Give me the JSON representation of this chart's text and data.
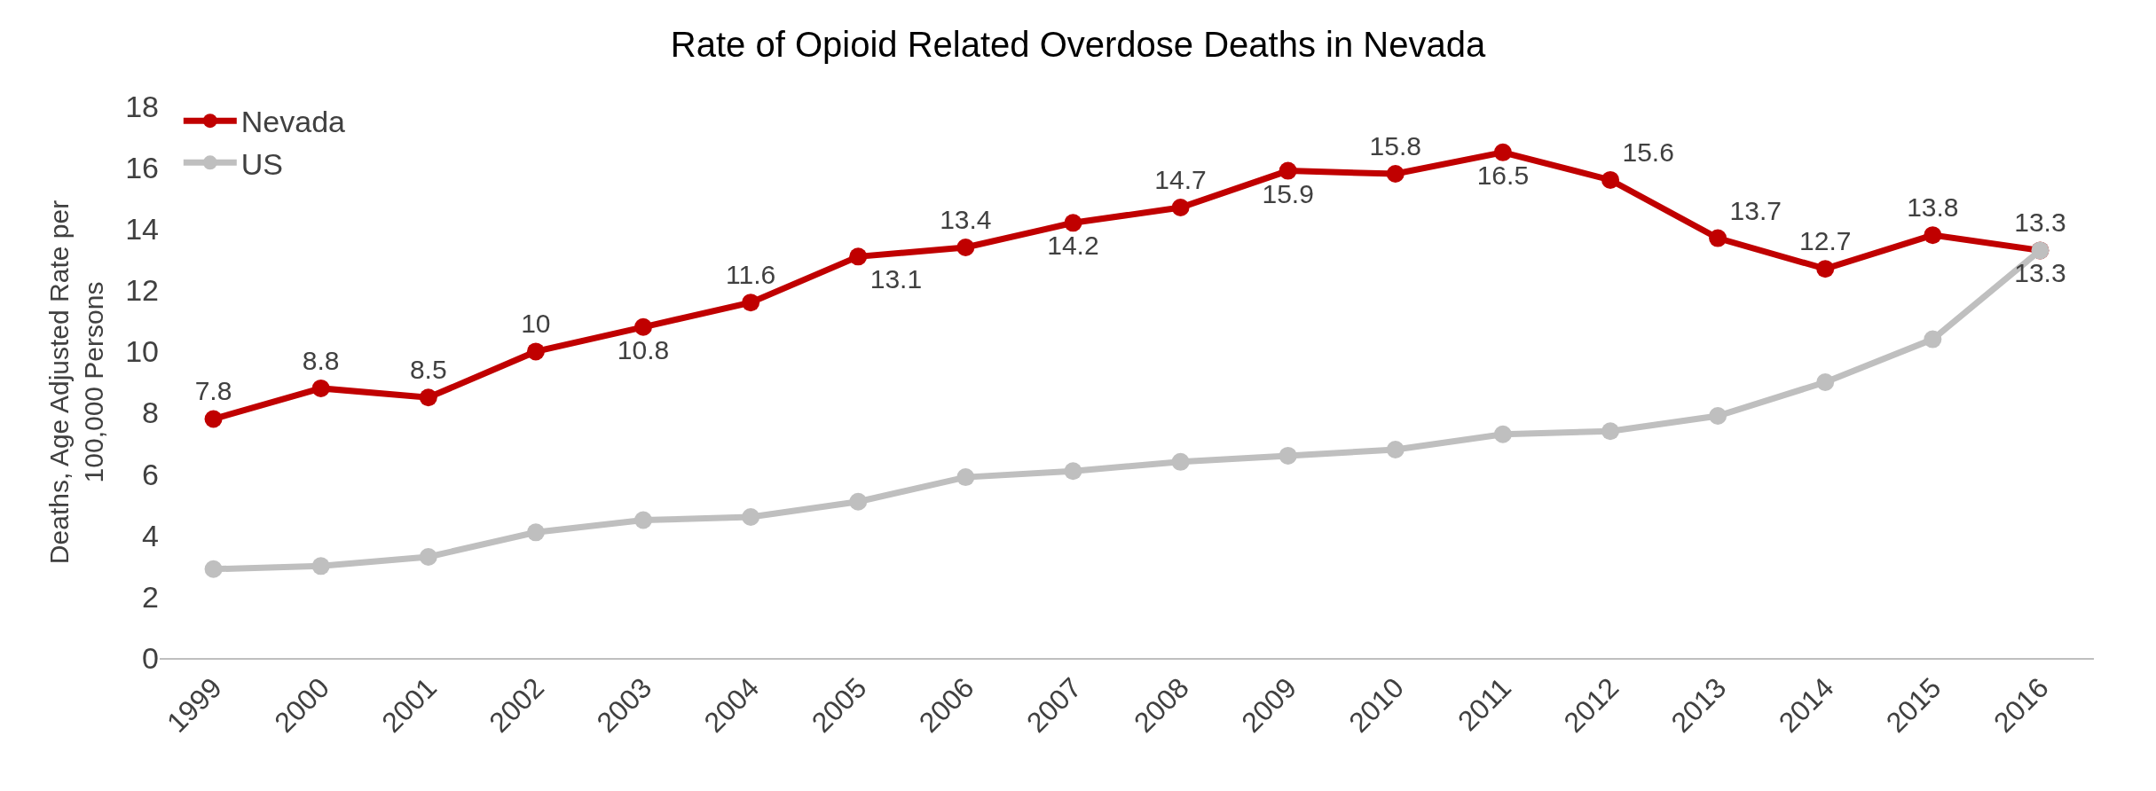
{
  "chart_data": {
    "type": "line",
    "title": "Rate of Opioid Related Overdose Deaths in Nevada",
    "ylabel": "Deaths, Age Adjusted Rate per 100,000 Persons",
    "categories": [
      "1999",
      "2000",
      "2001",
      "2002",
      "2003",
      "2004",
      "2005",
      "2006",
      "2007",
      "2008",
      "2009",
      "2010",
      "2011",
      "2012",
      "2013",
      "2014",
      "2015",
      "2016"
    ],
    "series": [
      {
        "name": "Nevada",
        "color": "#c00000",
        "values": [
          7.8,
          8.8,
          8.5,
          10,
          10.8,
          11.6,
          13.1,
          13.4,
          14.2,
          14.7,
          15.9,
          15.8,
          16.5,
          15.6,
          13.7,
          12.7,
          13.8,
          13.3
        ],
        "value_labels": [
          "7.8",
          "8.8",
          "8.5",
          "10",
          "10.8",
          "11.6",
          "13.1",
          "13.4",
          "14.2",
          "14.7",
          "15.9",
          "15.8",
          "16.5",
          "15.6",
          "13.7",
          "12.7",
          "13.8",
          "13.3"
        ]
      },
      {
        "name": "US",
        "color": "#bfbfbf",
        "values": [
          2.9,
          3.0,
          3.3,
          4.1,
          4.5,
          4.6,
          5.1,
          5.9,
          6.1,
          6.4,
          6.6,
          6.8,
          7.3,
          7.4,
          7.9,
          9.0,
          10.4,
          13.3
        ],
        "value_labels": [
          null,
          null,
          null,
          null,
          null,
          null,
          null,
          null,
          null,
          null,
          null,
          null,
          null,
          null,
          null,
          null,
          null,
          "13.3"
        ]
      }
    ],
    "ylim": [
      0,
      18
    ],
    "yticks": [
      0,
      2,
      4,
      6,
      8,
      10,
      12,
      14,
      16,
      18
    ],
    "legend": "top left",
    "marker": "circle",
    "line_style": "solid"
  }
}
